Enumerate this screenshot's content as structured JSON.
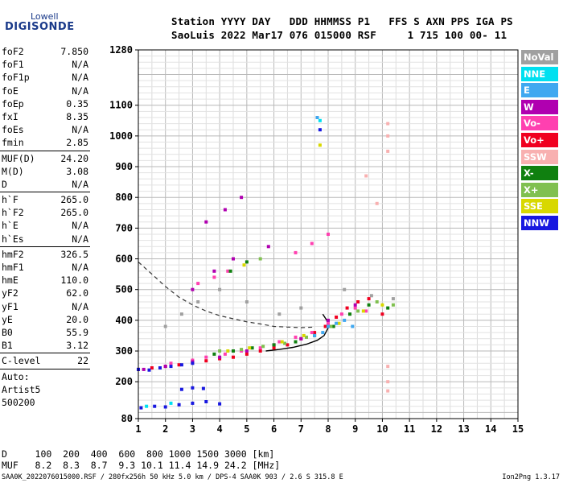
{
  "logo": {
    "top": "Lowell",
    "bottom": "DIGISONDE"
  },
  "header": {
    "line1": "Station YYYY DAY   DDD HHMMSS P1   FFS S AXN PPS IGA PS",
    "line2": "SaoLuis 2022 Mar17 076 015000 RSF     1 715 100 00- 11"
  },
  "params": {
    "g1": [
      [
        "foF2",
        "7.850"
      ],
      [
        "foF1",
        "N/A"
      ],
      [
        "foF1p",
        "N/A"
      ],
      [
        "foE",
        "N/A"
      ],
      [
        "foEp",
        "0.35"
      ],
      [
        "fxI",
        "8.35"
      ],
      [
        "foEs",
        "N/A"
      ],
      [
        "fmin",
        "2.85"
      ]
    ],
    "g2": [
      [
        "MUF(D)",
        "24.20"
      ],
      [
        "M(D)",
        "3.08"
      ],
      [
        "D",
        "N/A"
      ]
    ],
    "g3": [
      [
        "h`F",
        "265.0"
      ],
      [
        "h`F2",
        "265.0"
      ],
      [
        "h`E",
        "N/A"
      ],
      [
        "h`Es",
        "N/A"
      ]
    ],
    "g4": [
      [
        "hmF2",
        "326.5"
      ],
      [
        "hmF1",
        "N/A"
      ],
      [
        "hmE",
        "110.0"
      ],
      [
        "yF2",
        "62.0"
      ],
      [
        "yF1",
        "N/A"
      ],
      [
        "yE",
        "20.0"
      ],
      [
        "B0",
        "55.9"
      ],
      [
        "B1",
        "3.12"
      ]
    ],
    "g5": [
      [
        "C-level",
        "22"
      ]
    ]
  },
  "autoscaling": {
    "line1": "Auto:",
    "line2": "Artist5",
    "line3": "500200"
  },
  "legend": [
    {
      "label": "NoVal",
      "color": "#a0a0a0"
    },
    {
      "label": "NNE",
      "color": "#00e0f0"
    },
    {
      "label": "E",
      "color": "#40a8f0"
    },
    {
      "label": "W",
      "color": "#b000b0"
    },
    {
      "label": "Vo-",
      "color": "#ff40b0"
    },
    {
      "label": "Vo+",
      "color": "#f00020"
    },
    {
      "label": "SSW",
      "color": "#f8b0b0"
    },
    {
      "label": "X-",
      "color": "#108010"
    },
    {
      "label": "X+",
      "color": "#80c050"
    },
    {
      "label": "SSE",
      "color": "#d8d800"
    },
    {
      "label": "NNW",
      "color": "#1818e0"
    }
  ],
  "dmuf": {
    "d_row": "D     100  200  400  600  800 1000 1500 3000 [km]",
    "muf_row": "MUF   8.2  8.3  8.7  9.3 10.1 11.4 14.9 24.2 [MHz]"
  },
  "footer": {
    "left": "SAA0K_2022076015000.RSF / 280fx256h 50 kHz 5.0 km / DPS-4 SAA0K 903 / 2.6 S 315.8 E",
    "right": "Ion2Png 1.3.17"
  },
  "chart_data": {
    "type": "scatter",
    "xlim": [
      1,
      15
    ],
    "x_ticks": [
      1,
      2,
      3,
      4,
      5,
      6,
      7,
      8,
      9,
      10,
      11,
      12,
      13,
      14,
      15
    ],
    "ylim": [
      80,
      1280
    ],
    "y_ticks": [
      80,
      200,
      300,
      400,
      500,
      600,
      700,
      800,
      900,
      1000,
      1100,
      1280
    ],
    "grid": true,
    "legend_placement": "right",
    "series": [
      {
        "name": "Vo+",
        "points": [
          [
            1.0,
            240
          ],
          [
            1.5,
            245
          ],
          [
            2.0,
            250
          ],
          [
            2.5,
            255
          ],
          [
            3.0,
            262
          ],
          [
            3.5,
            268
          ],
          [
            4.0,
            275
          ],
          [
            4.5,
            280
          ],
          [
            5.0,
            290
          ],
          [
            5.5,
            300
          ],
          [
            6.0,
            310
          ],
          [
            6.5,
            320
          ],
          [
            7.0,
            340
          ],
          [
            7.5,
            360
          ],
          [
            7.9,
            380
          ],
          [
            8.3,
            410
          ],
          [
            8.7,
            440
          ],
          [
            9.1,
            460
          ],
          [
            9.5,
            470
          ],
          [
            10.0,
            420
          ]
        ]
      },
      {
        "name": "Vo-",
        "points": [
          [
            2.2,
            260
          ],
          [
            3.0,
            270
          ],
          [
            3.5,
            280
          ],
          [
            4.2,
            290
          ],
          [
            4.8,
            300
          ],
          [
            5.5,
            310
          ],
          [
            6.2,
            330
          ],
          [
            6.8,
            345
          ],
          [
            7.4,
            360
          ],
          [
            8.0,
            390
          ],
          [
            8.5,
            420
          ],
          [
            9.0,
            440
          ],
          [
            9.4,
            430
          ],
          [
            3.2,
            520
          ],
          [
            3.8,
            540
          ],
          [
            4.3,
            560
          ],
          [
            6.8,
            620
          ],
          [
            7.4,
            650
          ],
          [
            8.0,
            680
          ]
        ]
      },
      {
        "name": "W",
        "points": [
          [
            1.2,
            240
          ],
          [
            2.0,
            250
          ],
          [
            3.0,
            265
          ],
          [
            4.0,
            280
          ],
          [
            5.0,
            300
          ],
          [
            6.0,
            320
          ],
          [
            7.0,
            340
          ],
          [
            8.0,
            400
          ],
          [
            9.0,
            450
          ],
          [
            3.0,
            500
          ],
          [
            3.8,
            560
          ],
          [
            4.5,
            600
          ],
          [
            5.8,
            640
          ],
          [
            3.5,
            720
          ],
          [
            4.2,
            760
          ],
          [
            4.8,
            800
          ]
        ]
      },
      {
        "name": "X-",
        "points": [
          [
            3.8,
            290
          ],
          [
            4.5,
            300
          ],
          [
            5.2,
            310
          ],
          [
            6.0,
            320
          ],
          [
            6.8,
            330
          ],
          [
            7.5,
            350
          ],
          [
            8.2,
            380
          ],
          [
            8.8,
            420
          ],
          [
            9.5,
            450
          ],
          [
            10.2,
            440
          ],
          [
            4.4,
            560
          ],
          [
            5.0,
            590
          ]
        ]
      },
      {
        "name": "X+",
        "points": [
          [
            4.0,
            300
          ],
          [
            4.8,
            305
          ],
          [
            5.6,
            315
          ],
          [
            6.4,
            325
          ],
          [
            7.2,
            345
          ],
          [
            8.1,
            380
          ],
          [
            9.1,
            430
          ],
          [
            9.8,
            460
          ],
          [
            10.4,
            450
          ],
          [
            5.5,
            600
          ]
        ]
      },
      {
        "name": "SSE",
        "points": [
          [
            4.3,
            300
          ],
          [
            5.1,
            310
          ],
          [
            6.3,
            330
          ],
          [
            7.1,
            350
          ],
          [
            8.4,
            390
          ],
          [
            9.3,
            430
          ],
          [
            10.0,
            450
          ],
          [
            7.7,
            970
          ],
          [
            4.9,
            580
          ]
        ]
      },
      {
        "name": "E",
        "points": [
          [
            7.5,
            350
          ],
          [
            7.8,
            360
          ],
          [
            8.0,
            380
          ],
          [
            8.3,
            390
          ],
          [
            8.6,
            400
          ],
          [
            8.9,
            380
          ],
          [
            7.6,
            1060
          ]
        ]
      },
      {
        "name": "NNE",
        "points": [
          [
            7.7,
            1050
          ],
          [
            1.3,
            120
          ],
          [
            2.2,
            130
          ]
        ]
      },
      {
        "name": "NNW",
        "points": [
          [
            1.0,
            240
          ],
          [
            1.4,
            238
          ],
          [
            1.8,
            245
          ],
          [
            2.2,
            250
          ],
          [
            2.6,
            255
          ],
          [
            3.0,
            260
          ],
          [
            1.1,
            115
          ],
          [
            1.6,
            120
          ],
          [
            2.0,
            118
          ],
          [
            2.5,
            125
          ],
          [
            3.0,
            130
          ],
          [
            3.5,
            135
          ],
          [
            4.0,
            128
          ],
          [
            2.6,
            175
          ],
          [
            3.0,
            180
          ],
          [
            3.4,
            178
          ],
          [
            7.7,
            1020
          ]
        ]
      },
      {
        "name": "SSW",
        "points": [
          [
            10.2,
            1040
          ],
          [
            10.2,
            1000
          ],
          [
            10.2,
            950
          ],
          [
            10.2,
            250
          ],
          [
            10.2,
            200
          ],
          [
            10.2,
            170
          ],
          [
            9.4,
            870
          ],
          [
            9.8,
            780
          ]
        ]
      },
      {
        "name": "NoVal",
        "points": [
          [
            2.0,
            380
          ],
          [
            2.6,
            420
          ],
          [
            3.2,
            460
          ],
          [
            4.0,
            500
          ],
          [
            5.0,
            460
          ],
          [
            6.2,
            420
          ],
          [
            7.0,
            440
          ],
          [
            8.6,
            500
          ],
          [
            9.6,
            480
          ],
          [
            10.4,
            470
          ]
        ]
      }
    ],
    "profile_curve": [
      [
        5.7,
        300
      ],
      [
        6.2,
        305
      ],
      [
        6.7,
        312
      ],
      [
        7.2,
        322
      ],
      [
        7.6,
        335
      ],
      [
        7.85,
        350
      ],
      [
        8.0,
        375
      ],
      [
        7.95,
        400
      ],
      [
        7.8,
        420
      ]
    ],
    "extrapolated_curve": [
      [
        1.0,
        590
      ],
      [
        1.5,
        550
      ],
      [
        2.0,
        510
      ],
      [
        2.5,
        475
      ],
      [
        3.0,
        450
      ],
      [
        3.5,
        430
      ],
      [
        4.0,
        415
      ],
      [
        4.5,
        405
      ],
      [
        5.0,
        395
      ],
      [
        5.5,
        388
      ],
      [
        6.0,
        380
      ],
      [
        6.5,
        378
      ],
      [
        7.0,
        376
      ],
      [
        7.5,
        378
      ]
    ]
  }
}
